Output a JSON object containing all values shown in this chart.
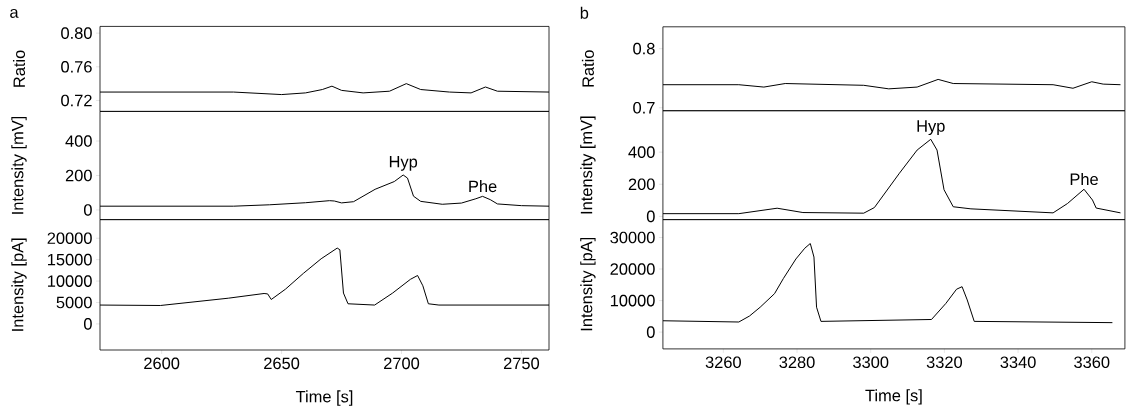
{
  "chart_data": [
    {
      "type": "line",
      "title": "a",
      "ylabel": "Ratio",
      "xlim": [
        2574.3,
        2761.5
      ],
      "ylim": [
        0.707,
        0.808
      ],
      "tick_labels": "y",
      "yticks": [
        {
          "value": 0.72,
          "label": "0.72"
        },
        {
          "value": 0.76,
          "label": "0.76"
        },
        {
          "value": 0.8,
          "label": "0.80"
        }
      ],
      "x": [
        2574.3,
        2630,
        2650,
        2660,
        2667,
        2671,
        2675,
        2684,
        2695,
        2702,
        2708,
        2720,
        2729,
        2735,
        2740,
        2761.5
      ],
      "series": [
        {
          "color": "#000000",
          "values": [
            0.73,
            0.73,
            0.727,
            0.729,
            0.733,
            0.737,
            0.732,
            0.729,
            0.731,
            0.74,
            0.733,
            0.73,
            0.729,
            0.736,
            0.731,
            0.73
          ]
        }
      ]
    },
    {
      "type": "line",
      "ylabel": "Intensity [mV]",
      "xlim": [
        2574.3,
        2761.5
      ],
      "ylim": [
        -56,
        572
      ],
      "tick_labels": "y",
      "yticks": [
        0,
        200,
        400
      ],
      "x": [
        2574.3,
        2600,
        2630,
        2645,
        2660,
        2670,
        2672,
        2675,
        2680,
        2689,
        2697,
        2700.7,
        2702.5,
        2705,
        2708,
        2717,
        2725,
        2731,
        2733.8,
        2737,
        2740,
        2750,
        2761.5
      ],
      "series": [
        {
          "color": "#000000",
          "values": [
            22,
            22,
            22,
            30,
            42,
            54,
            52,
            41,
            48,
            120,
            165,
            203,
            185,
            80,
            50,
            33,
            40,
            65,
            79,
            60,
            35,
            25,
            22
          ]
        }
      ],
      "annotations": [
        {
          "text": "Hyp",
          "x": 2700.7,
          "y": 203
        },
        {
          "text": "Phe",
          "x": 2733.8,
          "y": 79
        }
      ]
    },
    {
      "type": "line",
      "ylabel": "Intensity [pA]",
      "xlabel": "Time [s]",
      "xlim": [
        2574.3,
        2761.5
      ],
      "ylim": [
        -6090,
        24340
      ],
      "xticks": [
        2600,
        2650,
        2700,
        2750
      ],
      "yticks": [
        0,
        5000,
        10000,
        15000,
        20000
      ],
      "x": [
        2574.3,
        2599.5,
        2627.8,
        2642.7,
        2644.2,
        2645.7,
        2651.6,
        2659.1,
        2666.5,
        2673.2,
        2674.3,
        2675.8,
        2677.7,
        2688.8,
        2696.3,
        2703.7,
        2706.7,
        2708.9,
        2711.2,
        2715.6,
        2761.5
      ],
      "series": [
        {
          "color": "#000000",
          "values": [
            4400,
            4300,
            6000,
            7100,
            7000,
            5700,
            8100,
            11800,
            15200,
            17700,
            17300,
            7200,
            4700,
            4400,
            7200,
            10400,
            11300,
            8900,
            4700,
            4400,
            4400
          ]
        }
      ]
    },
    {
      "type": "line",
      "title": "b",
      "ylabel": "Ratio",
      "xlim": [
        3243.6,
        3369
      ],
      "ylim": [
        0.695,
        0.837
      ],
      "tick_labels": "y",
      "yticks": [
        0.7,
        0.8
      ],
      "x": [
        3243.6,
        3264.2,
        3271,
        3276.8,
        3298.1,
        3304.9,
        3312.6,
        3318.3,
        3322.4,
        3349.5,
        3354.9,
        3360,
        3363.1,
        3367.8
      ],
      "series": [
        {
          "color": "#000000",
          "values": [
            0.739,
            0.739,
            0.735,
            0.741,
            0.738,
            0.732,
            0.735,
            0.748,
            0.741,
            0.739,
            0.733,
            0.744,
            0.74,
            0.739
          ]
        }
      ]
    },
    {
      "type": "line",
      "ylabel": "Intensity [mV]",
      "xlim": [
        3243.6,
        3369
      ],
      "ylim": [
        -20,
        658
      ],
      "tick_labels": "y",
      "yticks": [
        0,
        200,
        400
      ],
      "x": [
        3243.6,
        3264.2,
        3274.6,
        3281.6,
        3298.1,
        3301,
        3307.8,
        3312.6,
        3316.3,
        3318,
        3319.9,
        3322.4,
        3327.2,
        3349.5,
        3353.4,
        3357.9,
        3360.2,
        3361.2,
        3367.8
      ],
      "series": [
        {
          "color": "#000000",
          "values": [
            17,
            17,
            51,
            24,
            20,
            55,
            269,
            413,
            480,
            413,
            166,
            60,
            47,
            22,
            80,
            169,
            102,
            52,
            22
          ]
        }
      ],
      "annotations": [
        {
          "text": "Hyp",
          "x": 3316.3,
          "y": 480
        },
        {
          "text": "Phe",
          "x": 3357.9,
          "y": 169
        }
      ]
    },
    {
      "type": "line",
      "ylabel": "Intensity [pA]",
      "xlabel": "Time [s]",
      "xlim": [
        3243.6,
        3369
      ],
      "ylim": [
        -5330,
        35680
      ],
      "xticks": [
        3260,
        3280,
        3300,
        3320,
        3340,
        3360
      ],
      "yticks": [
        0,
        10000,
        20000,
        30000
      ],
      "x": [
        3243.6,
        3264.2,
        3267.1,
        3270,
        3273.9,
        3276.3,
        3279.7,
        3282.1,
        3283.6,
        3284.6,
        3285.3,
        3286.5,
        3316.5,
        3320.4,
        3323.3,
        3324.8,
        3326.2,
        3328.1,
        3365.6
      ],
      "series": [
        {
          "color": "#000000",
          "values": [
            3600,
            3200,
            5100,
            7900,
            12200,
            17000,
            23200,
            26600,
            28100,
            23800,
            7900,
            3400,
            4000,
            9100,
            13600,
            14400,
            10200,
            3400,
            3000
          ]
        }
      ]
    }
  ]
}
